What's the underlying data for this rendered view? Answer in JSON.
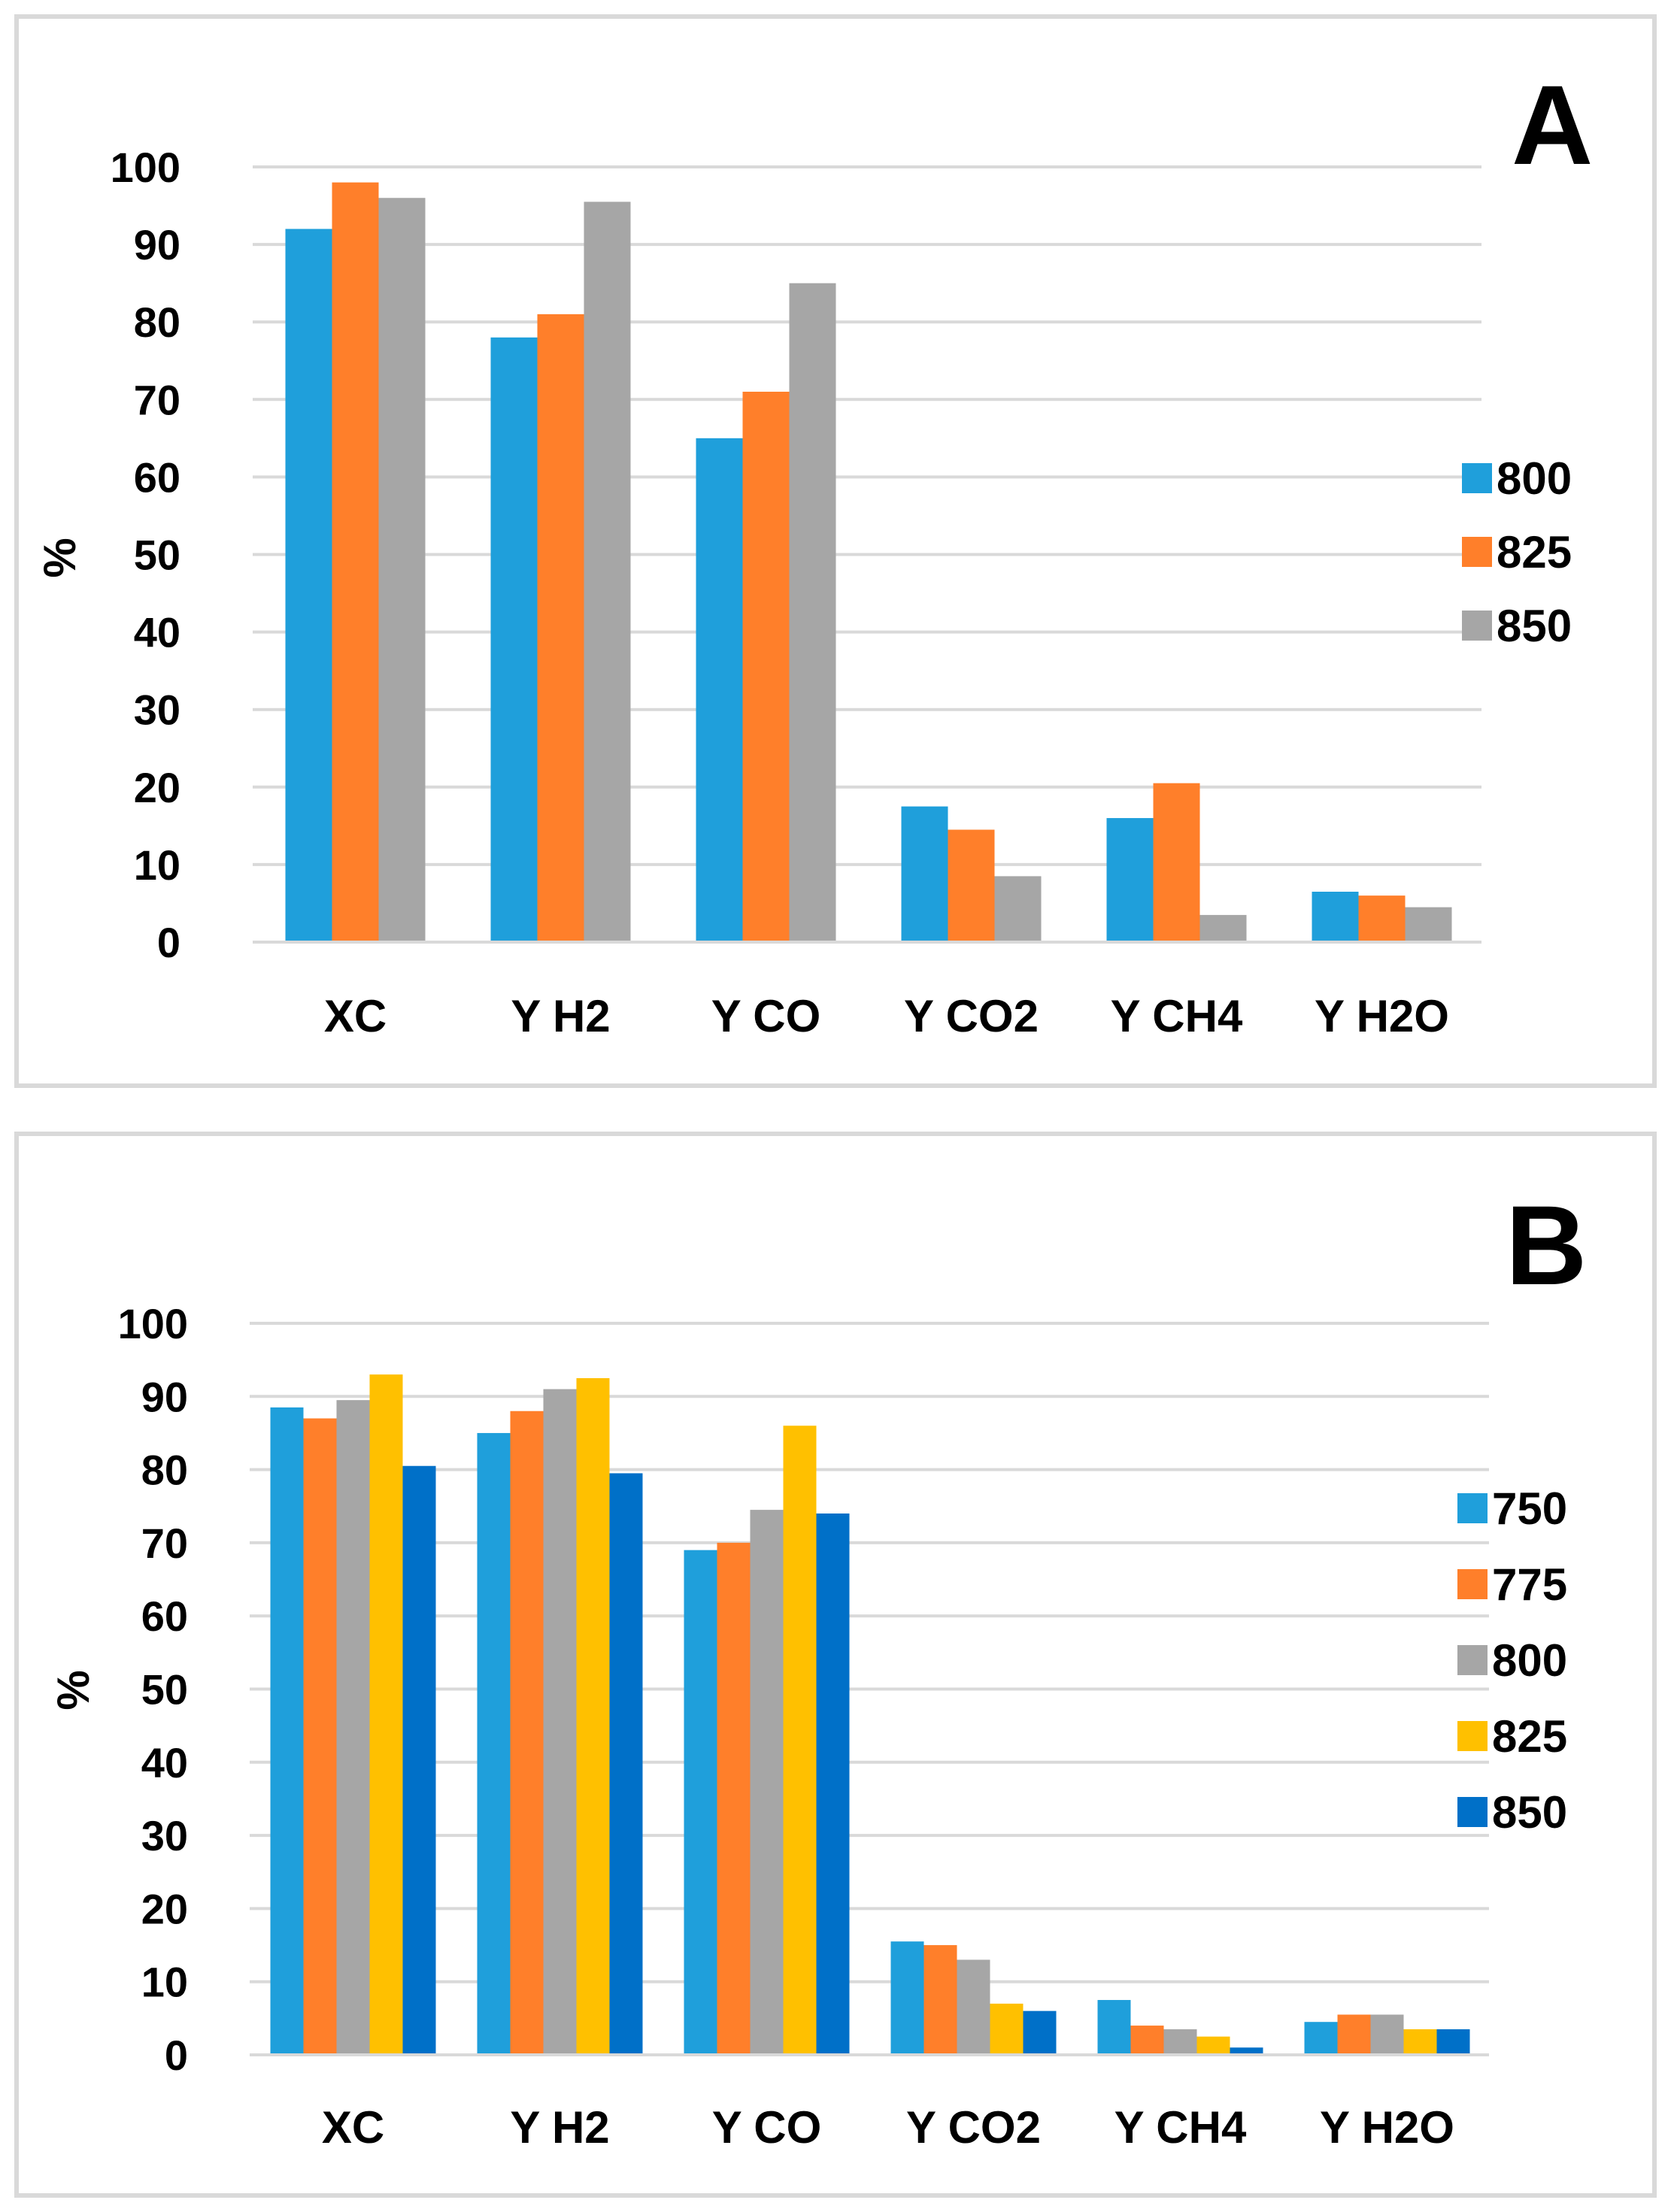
{
  "chart_data": [
    {
      "type": "bar",
      "panel_label": "A",
      "ylabel": "%",
      "xlabel": "",
      "ylim": [
        0,
        100
      ],
      "yticks": [
        "0",
        "10",
        "20",
        "30",
        "40",
        "50",
        "60",
        "70",
        "80",
        "90",
        "100"
      ],
      "grid": true,
      "legend_position": "right",
      "categories": [
        "XC",
        "Y H2",
        "Y CO",
        "Y CO2",
        "Y CH4",
        "Y H2O"
      ],
      "series": [
        {
          "name": "800",
          "color": "#1F9FDB",
          "values": [
            92,
            78,
            65,
            17.5,
            16,
            6.5
          ]
        },
        {
          "name": "825",
          "color": "#FF7F2A",
          "values": [
            98,
            81,
            71,
            14.5,
            20.5,
            6
          ]
        },
        {
          "name": "850",
          "color": "#A6A6A6",
          "values": [
            96,
            95.5,
            85,
            8.5,
            3.5,
            4.5
          ]
        }
      ]
    },
    {
      "type": "bar",
      "panel_label": "B",
      "ylabel": "%",
      "xlabel": "",
      "ylim": [
        0,
        100
      ],
      "yticks": [
        "0",
        "10",
        "20",
        "30",
        "40",
        "50",
        "60",
        "70",
        "80",
        "90",
        "100"
      ],
      "grid": true,
      "legend_position": "right",
      "categories": [
        "XC",
        "Y H2",
        "Y CO",
        "Y CO2",
        "Y CH4",
        "Y H2O"
      ],
      "series": [
        {
          "name": "750",
          "color": "#1F9FDB",
          "values": [
            88.5,
            85,
            69,
            15.5,
            7.5,
            4.5
          ]
        },
        {
          "name": "775",
          "color": "#FF7F2A",
          "values": [
            87,
            88,
            70,
            15,
            4,
            5.5
          ]
        },
        {
          "name": "800",
          "color": "#A6A6A6",
          "values": [
            89.5,
            91,
            74.5,
            13,
            3.5,
            5.5
          ]
        },
        {
          "name": "825",
          "color": "#FFC000",
          "values": [
            93,
            92.5,
            86,
            7,
            2.5,
            3.5
          ]
        },
        {
          "name": "850",
          "color": "#0070C8",
          "values": [
            80.5,
            79.5,
            74,
            6,
            1,
            3.5
          ]
        }
      ]
    }
  ]
}
